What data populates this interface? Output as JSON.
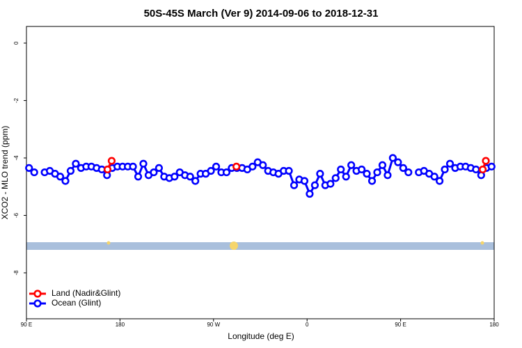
{
  "chart_data": {
    "type": "line",
    "title": "50S-45S March (Ver 9)   2014-09-06 to 2018-12-31",
    "x_label": "Longitude (deg E)",
    "y_label": "XCO2 - MLO trend (ppm)",
    "xlim": [
      90,
      540
    ],
    "ylim": [
      -9.6,
      0.58
    ],
    "xticks": [
      {
        "value": 90,
        "label": "90 E"
      },
      180,
      {
        "value": 270,
        "label": "90 W"
      },
      {
        "value": 360,
        "label": "0"
      },
      {
        "value": 450,
        "label": "90 E"
      },
      {
        "value": 540,
        "label": "180"
      }
    ],
    "yticks": [
      0,
      -2,
      -4,
      -6,
      -8
    ],
    "legend": "bottom-left",
    "series": [
      {
        "name": "Land (Nadir&Glint)",
        "color": "#ff0000",
        "x": [
          168,
          172,
          null,
          292,
          null,
          529,
          532
        ],
        "values": [
          -4.4,
          -4.1,
          null,
          -4.3,
          null,
          -4.4,
          -4.1
        ]
      },
      {
        "name": "Ocean (Glint)",
        "color": "#0000ff",
        "x": [
          92.5,
          97.5,
          102.5,
          107.5,
          112.5,
          117.5,
          122.5,
          127.5,
          132.5,
          137.5,
          142.5,
          147.5,
          152.5,
          157.5,
          162.5,
          167.5,
          172.5,
          177.5,
          182.5,
          187.5,
          192.5,
          197.5,
          202.5,
          207.5,
          212.5,
          217.5,
          222.5,
          227.5,
          232.5,
          237.5,
          242.5,
          247.5,
          252.5,
          257.5,
          262.5,
          267.5,
          272.5,
          277.5,
          282.5,
          287.5,
          292.5,
          297.5,
          302.5,
          307.5,
          312.5,
          317.5,
          322.5,
          327.5,
          332.5,
          337.5,
          342.5,
          347.5,
          352.5,
          357.5,
          362.5,
          367.5,
          372.5,
          377.5,
          382.5,
          387.5,
          392.5,
          397.5,
          402.5,
          407.5,
          412.5,
          417.5,
          422.5,
          427.5,
          432.5,
          437.5,
          442.5,
          447.5,
          452.5,
          457.5,
          462.5,
          467.5,
          472.5,
          477.5,
          482.5,
          487.5,
          492.5,
          497.5,
          502.5,
          507.5,
          512.5,
          517.5,
          522.5,
          527.5,
          532.5,
          537.5
        ],
        "values": [
          -4.35,
          -4.5,
          null,
          -4.5,
          -4.45,
          -4.55,
          -4.65,
          -4.8,
          -4.45,
          -4.2,
          -4.35,
          -4.3,
          -4.3,
          -4.35,
          -4.4,
          -4.6,
          -4.35,
          -4.3,
          -4.3,
          -4.3,
          -4.3,
          -4.65,
          -4.2,
          -4.6,
          -4.5,
          -4.35,
          -4.65,
          -4.7,
          -4.65,
          -4.5,
          -4.6,
          -4.65,
          -4.8,
          -4.55,
          -4.55,
          -4.45,
          -4.3,
          -4.5,
          -4.5,
          -4.35,
          -4.35,
          -4.35,
          -4.4,
          -4.3,
          -4.15,
          -4.25,
          -4.45,
          -4.5,
          -4.55,
          -4.45,
          -4.45,
          -4.95,
          -4.75,
          -4.8,
          -5.25,
          -4.95,
          -4.55,
          -4.95,
          -4.9,
          -4.7,
          -4.4,
          -4.65,
          -4.25,
          -4.45,
          -4.4,
          -4.55,
          -4.8,
          -4.5,
          -4.25,
          -4.6,
          -4.0,
          -4.15,
          -4.35,
          -4.5,
          null,
          -4.5,
          -4.45,
          -4.55,
          -4.65,
          -4.8,
          -4.4,
          -4.2,
          -4.35,
          -4.3,
          -4.3,
          -4.35,
          -4.4,
          -4.6,
          -4.35,
          -4.3
        ]
      }
    ]
  }
}
